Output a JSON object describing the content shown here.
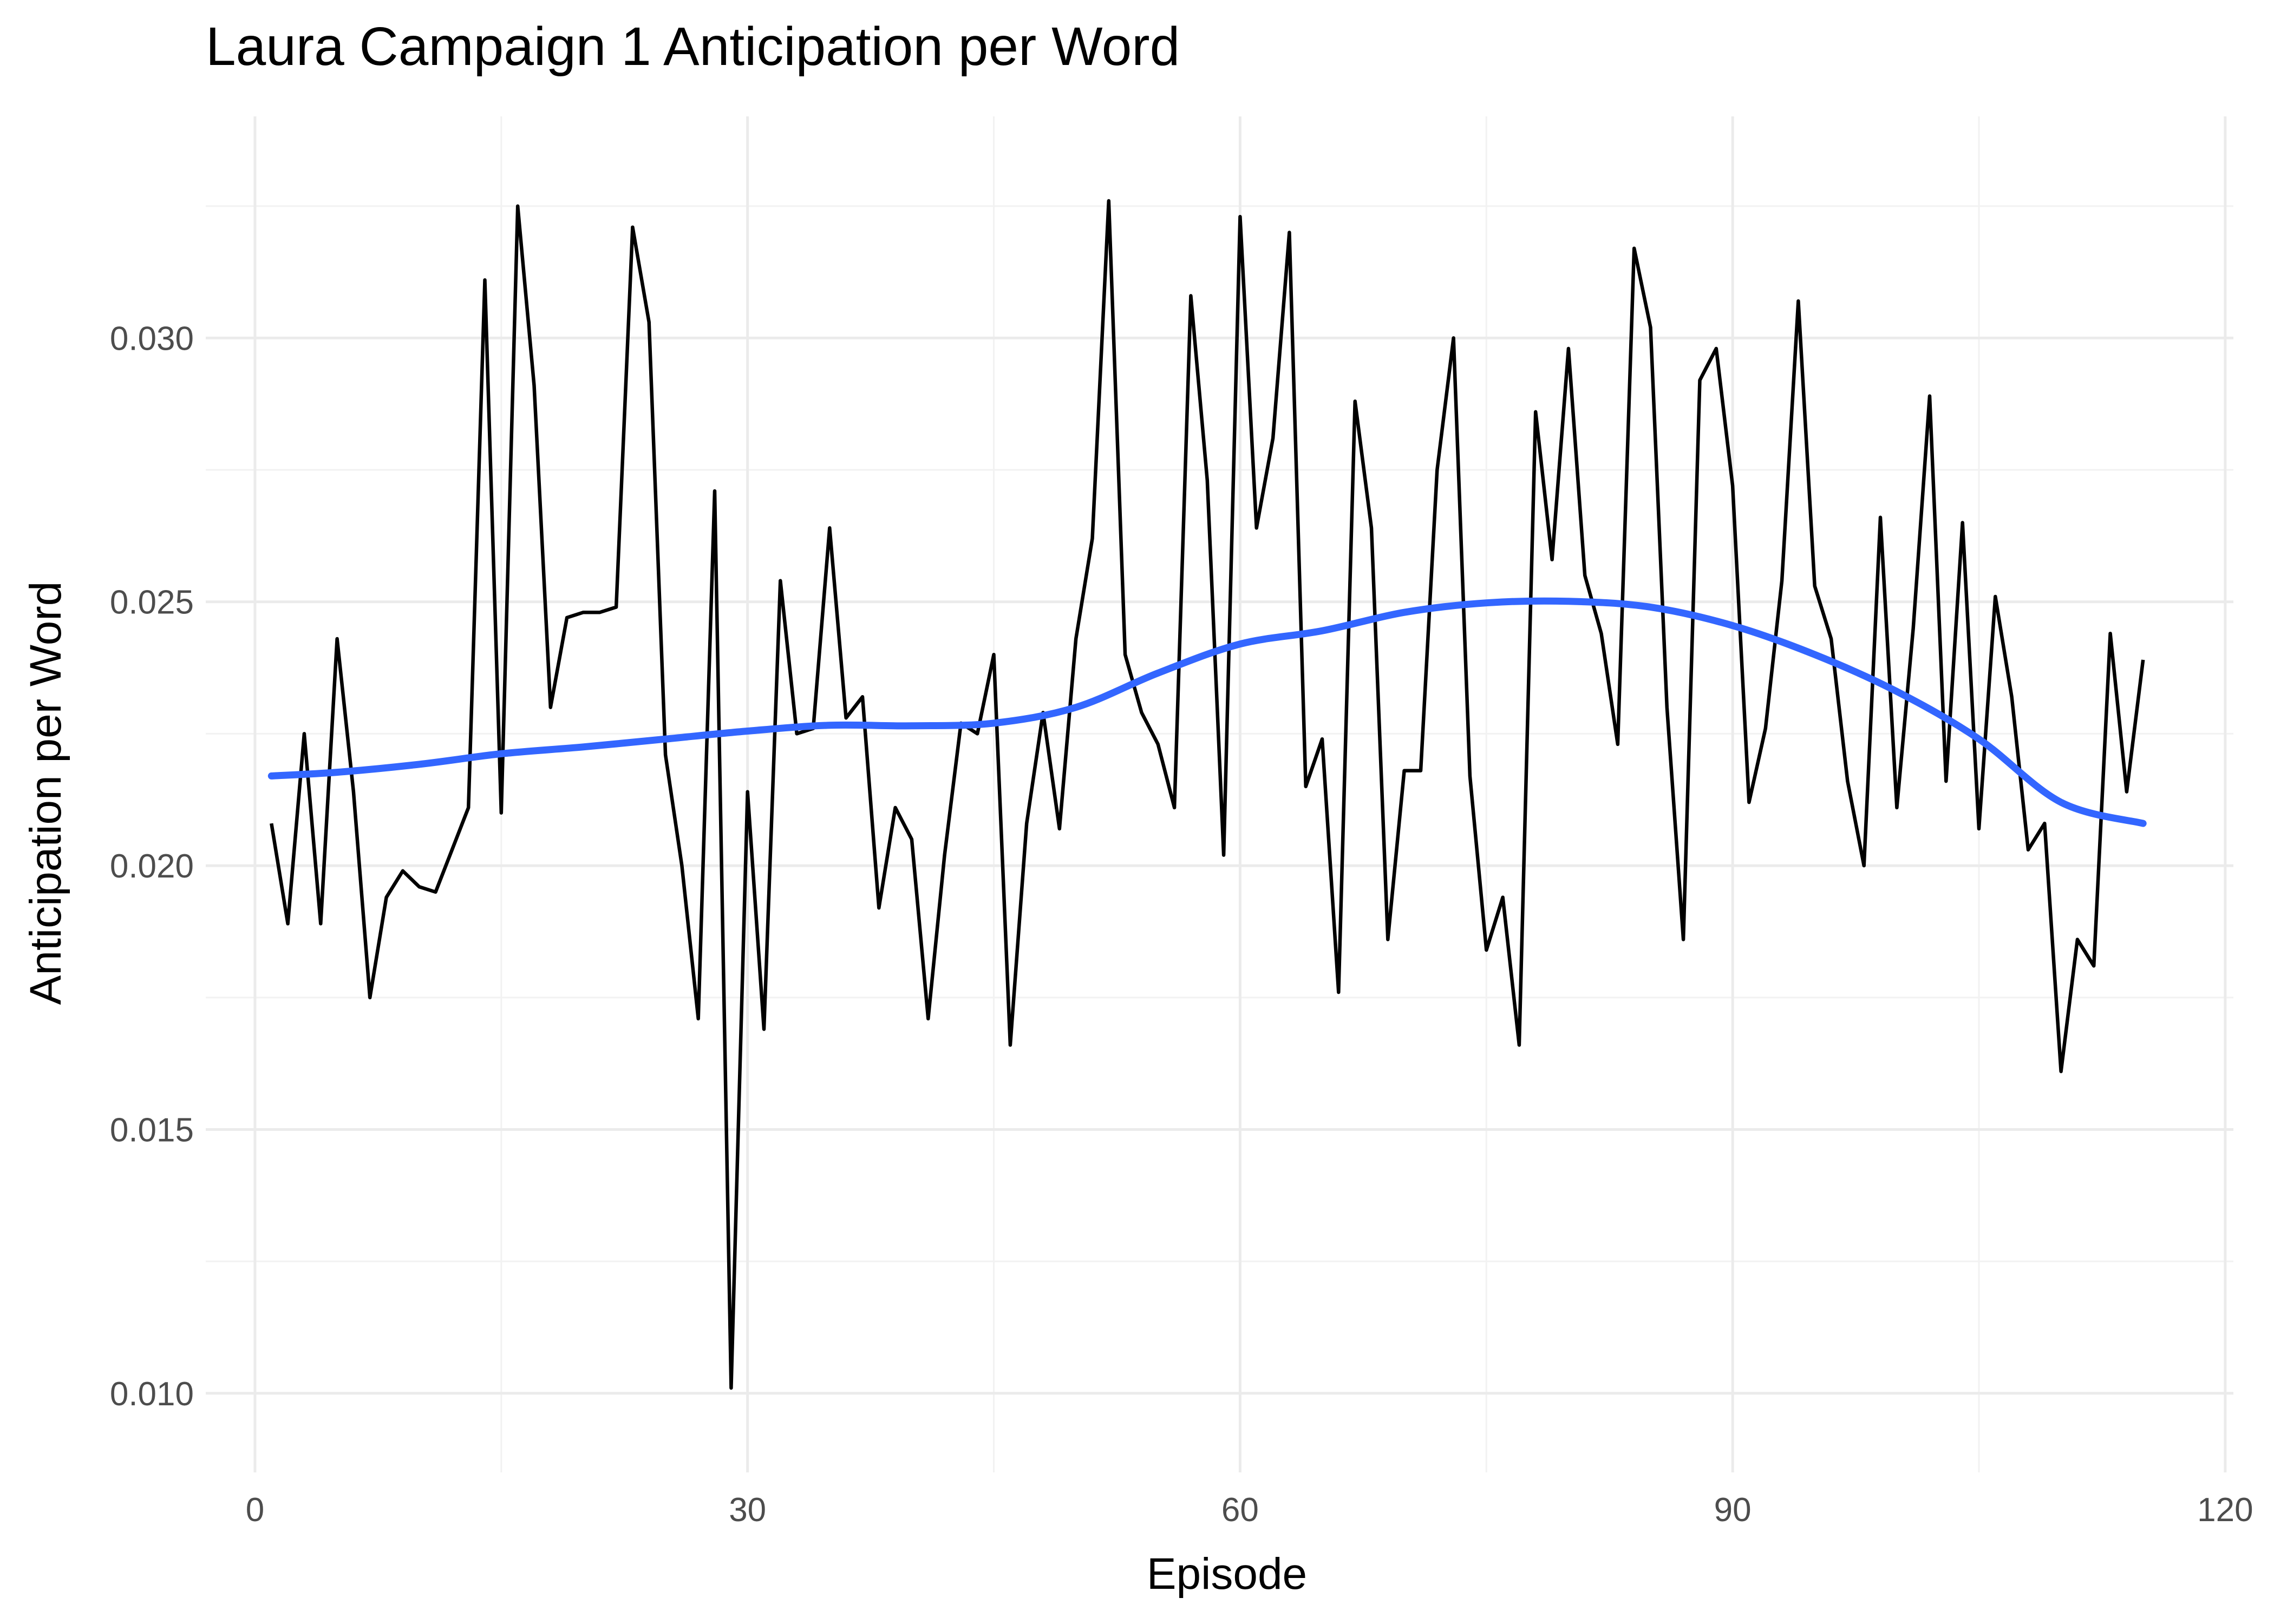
{
  "chart_data": {
    "type": "line",
    "title": "Laura Campaign 1 Anticipation per Word",
    "xlabel": "Episode",
    "ylabel": "Anticipation per Word",
    "xlim": [
      -3,
      120.5
    ],
    "ylim": [
      0.0085,
      0.0342
    ],
    "x_ticks": [
      0,
      30,
      60,
      90,
      120
    ],
    "x_tick_labels": [
      "0",
      "30",
      "60",
      "90",
      "120"
    ],
    "x_minor_ticks": [
      15,
      45,
      75,
      105
    ],
    "y_ticks": [
      0.01,
      0.015,
      0.02,
      0.025,
      0.03
    ],
    "y_tick_labels": [
      "0.010",
      "0.015",
      "0.020",
      "0.025",
      "0.030"
    ],
    "y_minor_ticks": [
      0.0125,
      0.0175,
      0.0225,
      0.0275,
      0.0325
    ],
    "grid": true,
    "legend": "none",
    "colors": {
      "series": "#000000",
      "smooth": "#3366ff",
      "grid": "#ebebeb",
      "background": "#ffffff"
    },
    "series": [
      {
        "x": [
          1,
          2,
          3,
          4,
          5,
          6,
          7,
          8,
          9,
          10,
          11,
          12,
          13,
          14,
          15,
          16,
          17,
          18,
          19,
          20,
          21,
          22,
          23,
          24,
          25,
          26,
          27,
          28,
          29,
          30,
          31,
          32,
          33,
          34,
          35,
          36,
          37,
          38,
          39,
          40,
          41,
          42,
          43,
          44,
          45,
          46,
          47,
          48,
          49,
          50,
          51,
          52,
          53,
          54,
          55,
          56,
          57,
          58,
          59,
          60,
          61,
          62,
          63,
          64,
          65,
          66,
          67,
          68,
          69,
          70,
          71,
          72,
          73,
          74,
          75,
          76,
          77,
          78,
          79,
          80,
          81,
          82,
          83,
          84,
          85,
          86,
          87,
          88,
          89,
          90,
          91,
          92,
          93,
          94,
          95,
          96,
          97,
          98,
          99,
          100,
          101,
          102,
          103,
          104,
          105,
          106,
          107,
          108,
          109,
          110,
          111,
          112,
          113,
          114,
          115
        ],
        "values": [
          0.0208,
          0.0189,
          0.0225,
          0.0189,
          0.0243,
          0.0214,
          0.0175,
          0.0194,
          0.0199,
          0.0196,
          0.0195,
          0.0203,
          0.0211,
          0.0311,
          0.021,
          0.0325,
          0.0291,
          0.023,
          0.0247,
          0.0248,
          0.0248,
          0.0249,
          0.0321,
          0.0303,
          0.0221,
          0.02,
          0.0171,
          0.0271,
          0.0101,
          0.0214,
          0.0169,
          0.0254,
          0.0225,
          0.0226,
          0.0264,
          0.0228,
          0.0232,
          0.0192,
          0.0211,
          0.0205,
          0.0171,
          0.0202,
          0.0227,
          0.0225,
          0.024,
          0.0166,
          0.0208,
          0.0229,
          0.0207,
          0.0243,
          0.0262,
          0.0326,
          0.024,
          0.0229,
          0.0223,
          0.0211,
          0.0308,
          0.0273,
          0.0202,
          0.0323,
          0.0264,
          0.0281,
          0.032,
          0.0215,
          0.0224,
          0.0176,
          0.0288,
          0.0264,
          0.0186,
          0.0218,
          0.0218,
          0.0275,
          0.03,
          0.0217,
          0.0184,
          0.0194,
          0.0166,
          0.0286,
          0.0258,
          0.0298,
          0.0255,
          0.0244,
          0.0223,
          0.0317,
          0.0302,
          0.023,
          0.0186,
          0.0292,
          0.0298,
          0.0272,
          0.0212,
          0.0226,
          0.0254,
          0.0307,
          0.0253,
          0.0243,
          0.0216,
          0.02,
          0.0266,
          0.0211,
          0.0245,
          0.0289,
          0.0216,
          0.0265,
          0.0207,
          0.0251,
          0.0232,
          0.0203,
          0.0208,
          0.0161,
          0.0186,
          0.0181,
          0.0244,
          0.0214,
          0.0239
        ]
      },
      {
        "x": [
          1,
          5,
          10,
          15,
          20,
          25,
          30,
          35,
          40,
          45,
          50,
          55,
          60,
          65,
          70,
          75,
          80,
          85,
          90,
          95,
          100,
          105,
          110,
          115
        ],
        "values": [
          0.0217,
          0.02177,
          0.02192,
          0.02212,
          0.02225,
          0.0224,
          0.02255,
          0.02266,
          0.02265,
          0.0227,
          0.023,
          0.02365,
          0.0242,
          0.02445,
          0.0248,
          0.02498,
          0.02501,
          0.0249,
          0.02455,
          0.024,
          0.0233,
          0.0224,
          0.0212,
          0.0208
        ]
      }
    ]
  }
}
